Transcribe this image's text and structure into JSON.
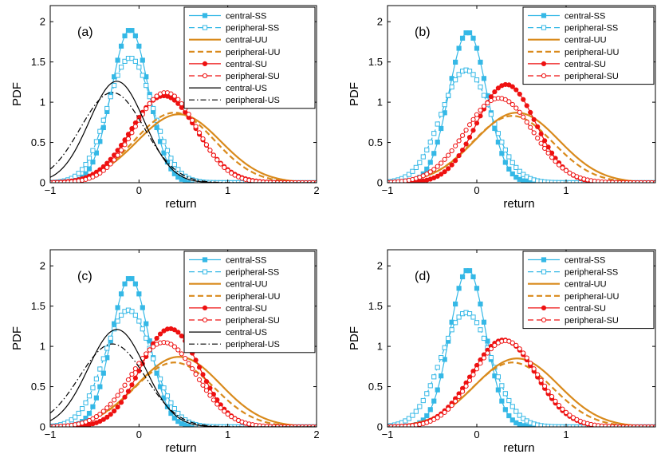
{
  "chart_data": [
    {
      "type": "line",
      "panel_label": "(a)",
      "xlabel": "return",
      "ylabel": "PDF",
      "xlim": [
        -1,
        2
      ],
      "ylim": [
        0,
        2.2
      ],
      "xticks": [
        -1,
        0,
        1,
        2
      ],
      "yticks": [
        0,
        0.5,
        1,
        1.5,
        2
      ],
      "legend_position": "top-right",
      "grid": false,
      "series": [
        {
          "name": "central-SS",
          "color": "#35b8e6",
          "line": "solid",
          "marker": "square-filled",
          "mu": -0.1,
          "sigma": 0.21,
          "peak": 1.9
        },
        {
          "name": "peripheral-SS",
          "color": "#35b8e6",
          "line": "dashed",
          "marker": "square-open",
          "mu": -0.1,
          "sigma": 0.255,
          "peak": 1.55
        },
        {
          "name": "central-UU",
          "color": "#d98a1c",
          "line": "solid",
          "marker": "none",
          "mu": 0.45,
          "sigma": 0.47,
          "peak": 0.85
        },
        {
          "name": "peripheral-UU",
          "color": "#d98a1c",
          "line": "dashed",
          "marker": "none",
          "mu": 0.4,
          "sigma": 0.45,
          "peak": 0.87
        },
        {
          "name": "central-SU",
          "color": "#ee1111",
          "line": "solid",
          "marker": "circle-filled",
          "mu": 0.28,
          "sigma": 0.37,
          "peak": 1.08
        },
        {
          "name": "peripheral-SU",
          "color": "#ee1111",
          "line": "dashed",
          "marker": "circle-open",
          "mu": 0.3,
          "sigma": 0.35,
          "peak": 1.12
        },
        {
          "name": "central-US",
          "color": "#000000",
          "line": "solid",
          "marker": "none",
          "mu": -0.25,
          "sigma": 0.31,
          "peak": 1.26
        },
        {
          "name": "peripheral-US",
          "color": "#000000",
          "line": "dashdot",
          "marker": "none",
          "mu": -0.3,
          "sigma": 0.36,
          "peak": 1.12
        }
      ]
    },
    {
      "type": "line",
      "panel_label": "(b)",
      "xlabel": "return",
      "ylabel": "PDF",
      "xlim": [
        -1,
        2
      ],
      "ylim": [
        0,
        2.2
      ],
      "xticks": [
        -1,
        0,
        1
      ],
      "yticks": [
        0,
        0.5,
        1,
        1.5,
        2
      ],
      "legend_position": "top-right",
      "grid": false,
      "series": [
        {
          "name": "central-SS",
          "color": "#35b8e6",
          "line": "solid",
          "marker": "square-filled",
          "mu": -0.1,
          "sigma": 0.21,
          "peak": 1.87
        },
        {
          "name": "peripheral-SS",
          "color": "#35b8e6",
          "line": "dashed",
          "marker": "square-open",
          "mu": -0.12,
          "sigma": 0.28,
          "peak": 1.4
        },
        {
          "name": "central-UU",
          "color": "#d98a1c",
          "line": "solid",
          "marker": "none",
          "mu": 0.45,
          "sigma": 0.47,
          "peak": 0.87
        },
        {
          "name": "peripheral-UU",
          "color": "#d98a1c",
          "line": "dashed",
          "marker": "none",
          "mu": 0.4,
          "sigma": 0.45,
          "peak": 0.83
        },
        {
          "name": "central-SU",
          "color": "#ee1111",
          "line": "solid",
          "marker": "circle-filled",
          "mu": 0.33,
          "sigma": 0.33,
          "peak": 1.22
        },
        {
          "name": "peripheral-SU",
          "color": "#ee1111",
          "line": "dashed",
          "marker": "circle-open",
          "mu": 0.25,
          "sigma": 0.38,
          "peak": 1.05
        }
      ]
    },
    {
      "type": "line",
      "panel_label": "(c)",
      "xlabel": "return",
      "ylabel": "PDF",
      "xlim": [
        -1,
        2
      ],
      "ylim": [
        0,
        2.2
      ],
      "xticks": [
        -1,
        0,
        1,
        2
      ],
      "yticks": [
        0,
        0.5,
        1,
        1.5,
        2
      ],
      "legend_position": "top-right",
      "grid": false,
      "series": [
        {
          "name": "central-SS",
          "color": "#35b8e6",
          "line": "solid",
          "marker": "square-filled",
          "mu": -0.1,
          "sigma": 0.21,
          "peak": 1.85
        },
        {
          "name": "peripheral-SS",
          "color": "#35b8e6",
          "line": "dashed",
          "marker": "square-open",
          "mu": -0.12,
          "sigma": 0.27,
          "peak": 1.45
        },
        {
          "name": "central-UU",
          "color": "#d98a1c",
          "line": "solid",
          "marker": "none",
          "mu": 0.45,
          "sigma": 0.47,
          "peak": 0.87
        },
        {
          "name": "peripheral-UU",
          "color": "#d98a1c",
          "line": "dashed",
          "marker": "none",
          "mu": 0.4,
          "sigma": 0.45,
          "peak": 0.8
        },
        {
          "name": "central-SU",
          "color": "#ee1111",
          "line": "solid",
          "marker": "circle-filled",
          "mu": 0.35,
          "sigma": 0.33,
          "peak": 1.22
        },
        {
          "name": "peripheral-SU",
          "color": "#ee1111",
          "line": "dashed",
          "marker": "circle-open",
          "mu": 0.28,
          "sigma": 0.37,
          "peak": 1.05
        },
        {
          "name": "central-US",
          "color": "#000000",
          "line": "solid",
          "marker": "none",
          "mu": -0.25,
          "sigma": 0.32,
          "peak": 1.21
        },
        {
          "name": "peripheral-US",
          "color": "#000000",
          "line": "dashdot",
          "marker": "none",
          "mu": -0.3,
          "sigma": 0.37,
          "peak": 1.03
        }
      ]
    },
    {
      "type": "line",
      "panel_label": "(d)",
      "xlabel": "return",
      "ylabel": "PDF",
      "xlim": [
        -1,
        2
      ],
      "ylim": [
        0,
        2.2
      ],
      "xticks": [
        -1,
        0,
        1
      ],
      "yticks": [
        0,
        0.5,
        1,
        1.5,
        2
      ],
      "legend_position": "top-right",
      "grid": false,
      "series": [
        {
          "name": "central-SS",
          "color": "#35b8e6",
          "line": "solid",
          "marker": "square-filled",
          "mu": -0.1,
          "sigma": 0.2,
          "peak": 1.95
        },
        {
          "name": "peripheral-SS",
          "color": "#35b8e6",
          "line": "dashed",
          "marker": "square-open",
          "mu": -0.12,
          "sigma": 0.28,
          "peak": 1.42
        },
        {
          "name": "central-UU",
          "color": "#d98a1c",
          "line": "solid",
          "marker": "none",
          "mu": 0.45,
          "sigma": 0.47,
          "peak": 0.85
        },
        {
          "name": "peripheral-UU",
          "color": "#d98a1c",
          "line": "dashed",
          "marker": "none",
          "mu": 0.4,
          "sigma": 0.45,
          "peak": 0.8
        },
        {
          "name": "central-SU",
          "color": "#ee1111",
          "line": "solid",
          "marker": "circle-filled",
          "mu": 0.3,
          "sigma": 0.36,
          "peak": 1.08
        },
        {
          "name": "peripheral-SU",
          "color": "#ee1111",
          "line": "dashed",
          "marker": "circle-open",
          "mu": 0.32,
          "sigma": 0.36,
          "peak": 1.07
        }
      ]
    }
  ]
}
